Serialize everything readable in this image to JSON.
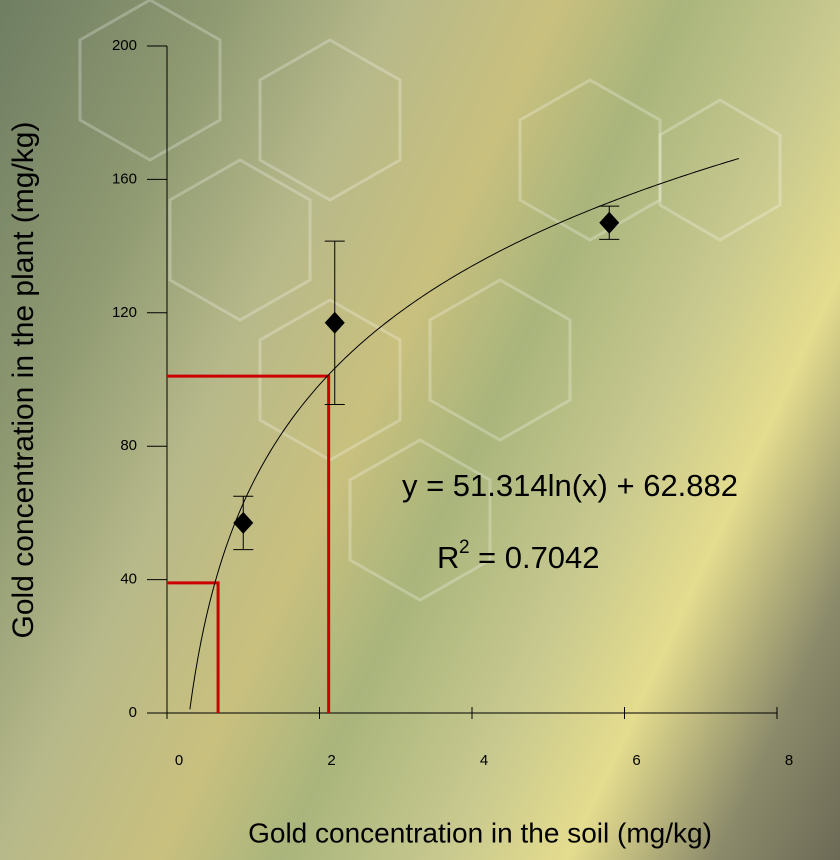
{
  "chart_data": {
    "type": "scatter",
    "xlabel": "Gold concentration in the soil (mg/kg)",
    "ylabel": "Gold concentration in the plant (mg/kg)",
    "x": [
      1.0,
      2.2,
      5.8
    ],
    "series": [
      {
        "color": "#000000",
        "values": [
          57,
          117,
          147
        ],
        "errors": [
          8,
          24.5,
          5
        ]
      }
    ],
    "xlim": [
      0,
      8
    ],
    "xticks": [
      0,
      2,
      4,
      6,
      8
    ],
    "ylim": [
      0,
      200
    ],
    "yticks": [
      0,
      40,
      80,
      120,
      160,
      200
    ],
    "trendline": {
      "label": "y = 51.314ln(x) + 62.882",
      "a": 51.314,
      "b": 62.882,
      "xrange": [
        0.3,
        7.5
      ],
      "color": "#000000"
    },
    "r_squared": {
      "symbol": "R",
      "exponent": "2",
      "text": "= 0.7042",
      "value": 0.7042
    },
    "guides": {
      "color": "#cc0000",
      "points": [
        {
          "x": 0.67,
          "y": 39
        },
        {
          "x": 2.12,
          "y": 101
        }
      ]
    }
  }
}
